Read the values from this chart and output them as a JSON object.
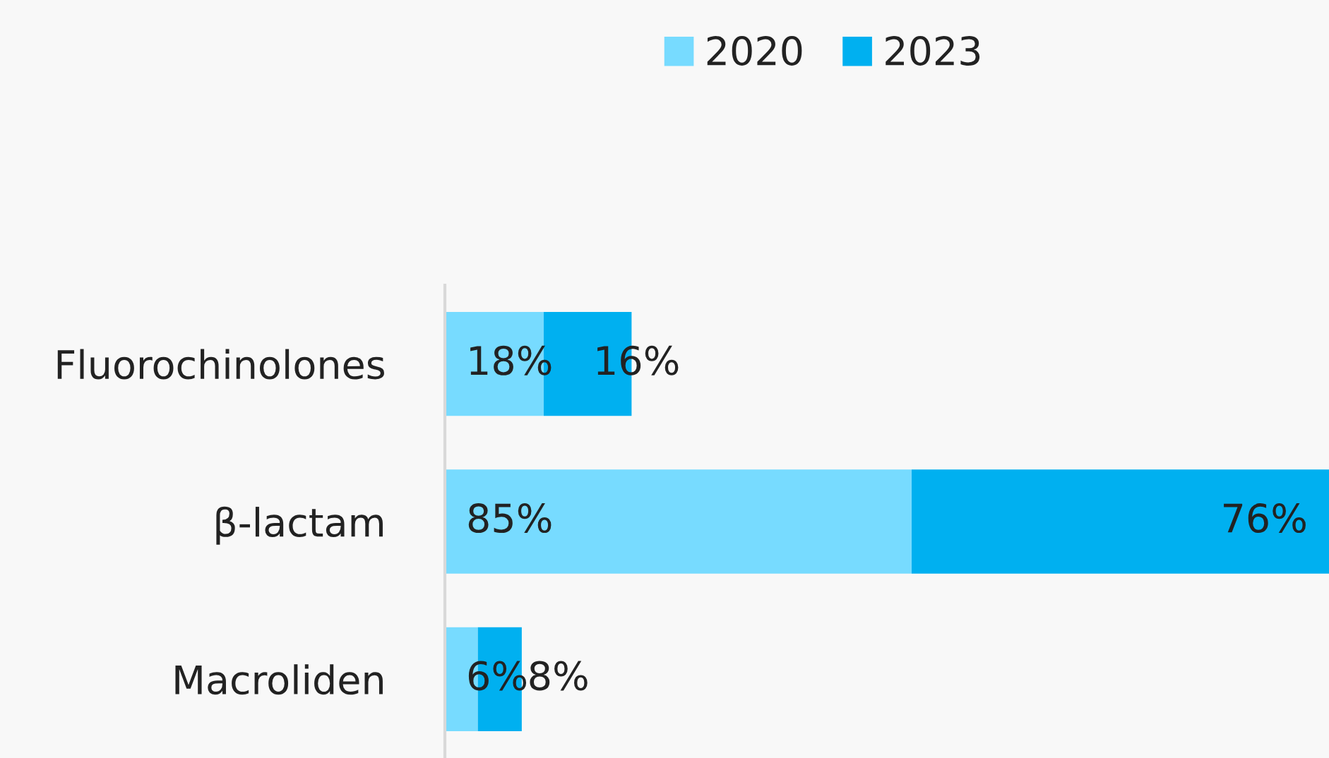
{
  "chart_data": {
    "type": "bar",
    "orientation": "horizontal",
    "stacked": true,
    "categories": [
      "Fluorochinolones",
      "β-lactam",
      "Macroliden"
    ],
    "series": [
      {
        "name": "2020",
        "color": "#77dbff",
        "values": [
          18,
          85,
          6
        ],
        "value_labels": [
          "18%",
          "85%",
          "6%"
        ]
      },
      {
        "name": "2023",
        "color": "#00b0f0",
        "values": [
          16,
          76,
          8
        ],
        "value_labels": [
          "16%",
          "76%",
          "8%"
        ]
      }
    ],
    "xlim": [
      0,
      161
    ],
    "tick_labels": "y",
    "legend": "top",
    "grid": false
  }
}
